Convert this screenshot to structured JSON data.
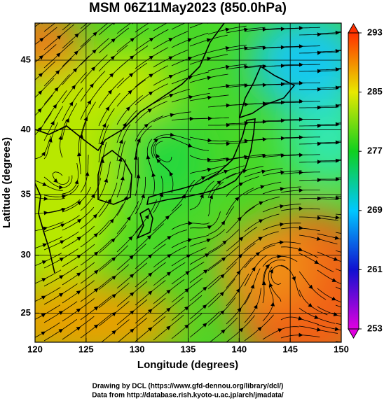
{
  "chart_data": {
    "type": "map",
    "title": "MSM 06Z11May2023 (850.0hPa)",
    "xlabel": "Longitude (degrees)",
    "ylabel": "Latitude  (degrees)",
    "projection": "mercator",
    "xlim": [
      120,
      150
    ],
    "xticks": [
      120,
      125,
      130,
      135,
      140,
      145,
      150
    ],
    "ylim": [
      22.4,
      47.5
    ],
    "yticks": [
      25,
      30,
      35,
      40,
      45
    ],
    "grid": true,
    "colorbar": {
      "lim": [
        253,
        293
      ],
      "ticks": [
        253,
        261,
        269,
        277,
        285,
        293
      ],
      "colors": [
        "#e000e0",
        "#1010d0",
        "#00c8ff",
        "#10d020",
        "#e8e800",
        "#ff3000"
      ]
    },
    "footer": [
      "Drawing by DCL (https://www.gfd-dennou.org/library/dcl/)",
      "Data from http://database.rish.kyoto-u.ac.jp/arch/jmadata/"
    ]
  }
}
